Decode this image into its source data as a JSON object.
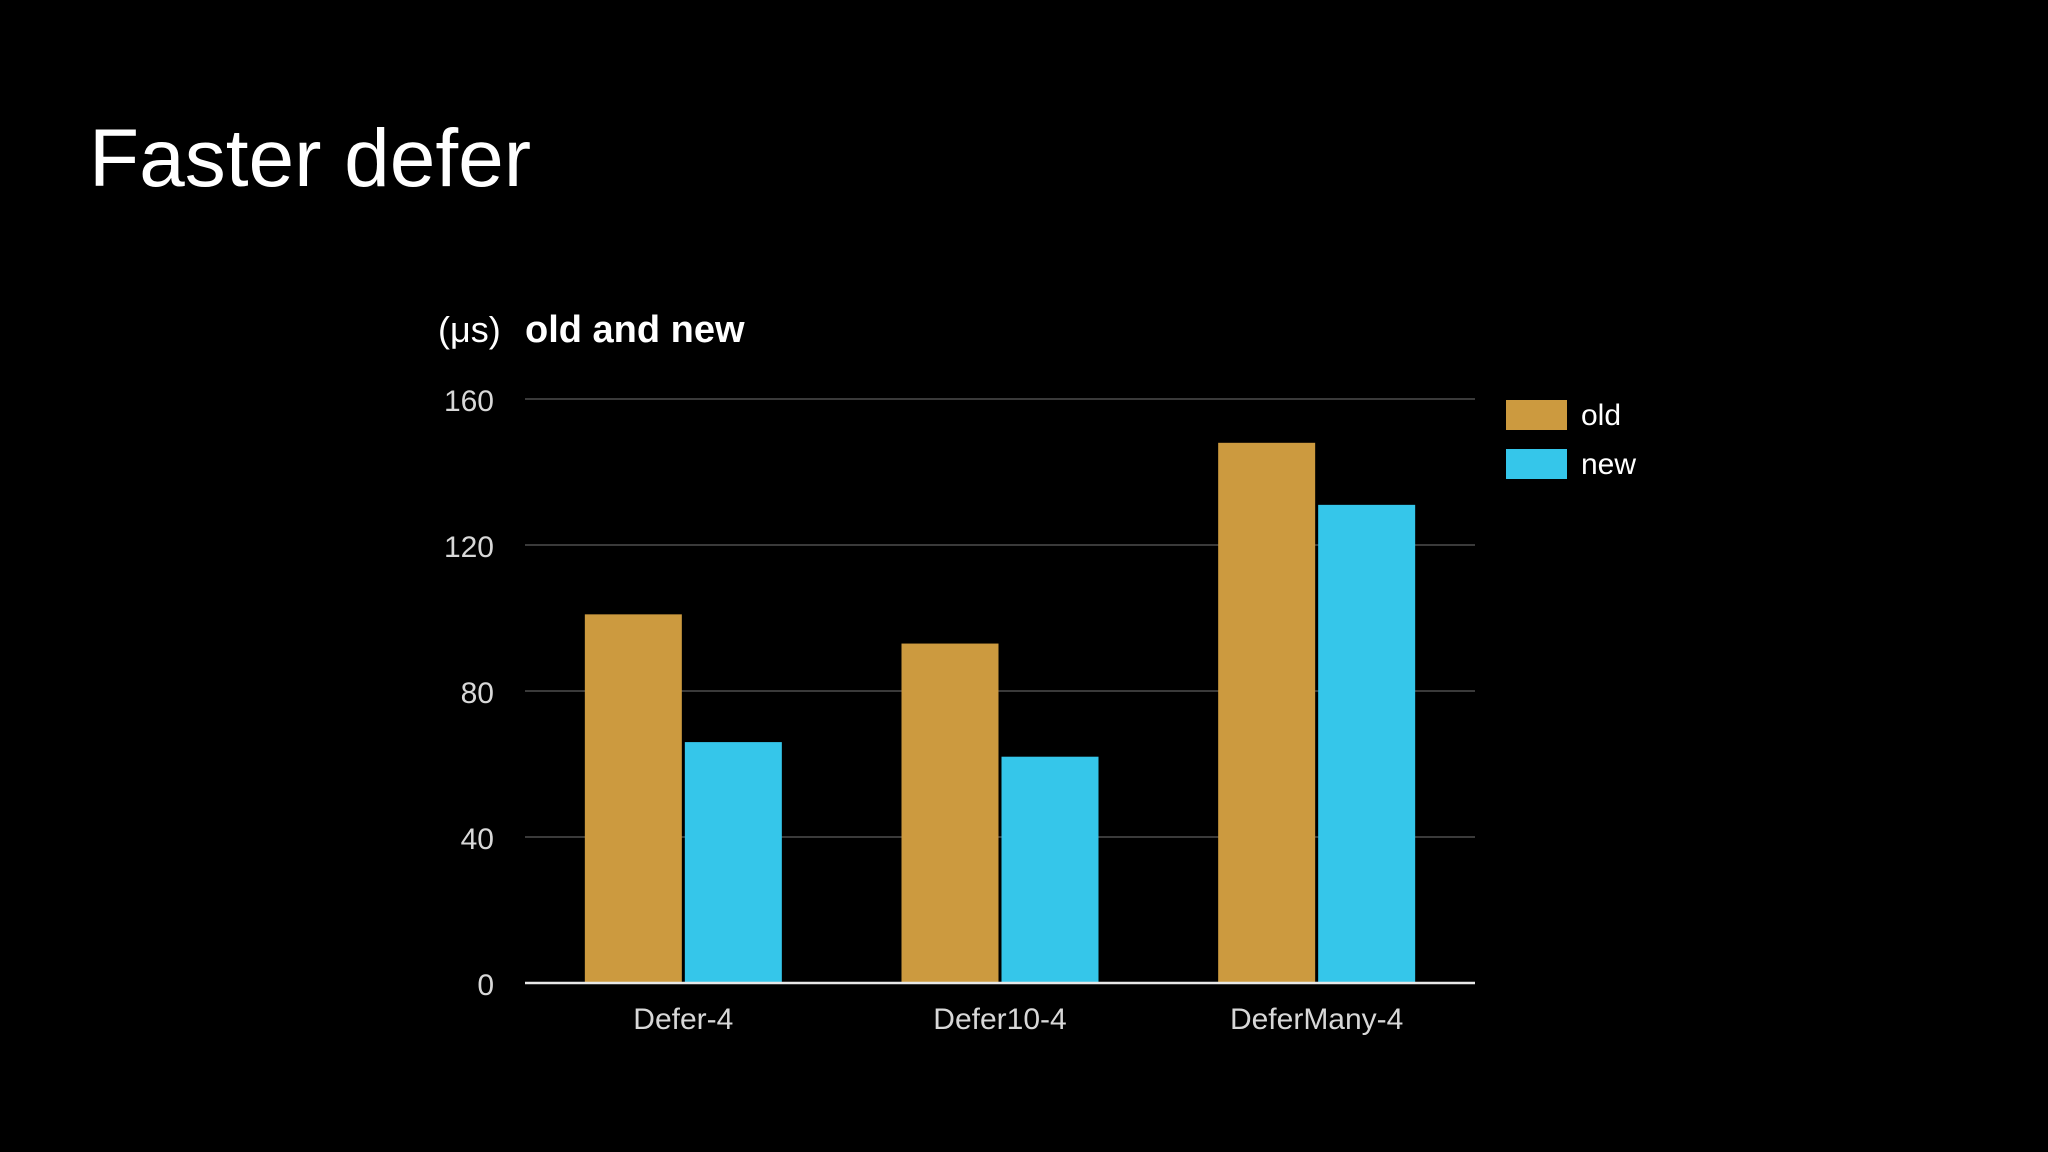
{
  "slide": {
    "title": "Faster defer"
  },
  "colors": {
    "background": "#000000",
    "old": "#cc9a3f",
    "new": "#35c6ea",
    "gridline": "#3a3a3a",
    "baseline": "#e8e8e8"
  },
  "chart_data": {
    "type": "bar",
    "title": "old and new",
    "ylabel": "(μs)",
    "xlabel": "",
    "categories": [
      "Defer-4",
      "Defer10-4",
      "DeferMany-4"
    ],
    "series": [
      {
        "name": "old",
        "values": [
          101,
          93,
          148
        ],
        "color": "#cc9a3f"
      },
      {
        "name": "new",
        "values": [
          66,
          62,
          131
        ],
        "color": "#35c6ea"
      }
    ],
    "ylim": [
      0,
      160
    ],
    "yticks": [
      0,
      40,
      80,
      120,
      160
    ],
    "grid": true,
    "legend": "right"
  }
}
